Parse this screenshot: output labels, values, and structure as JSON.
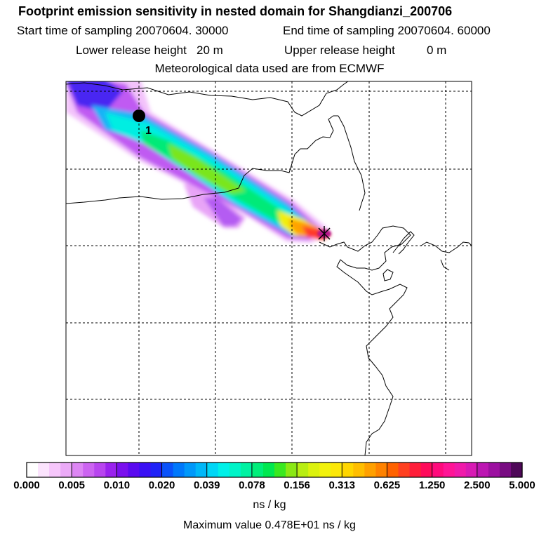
{
  "header": {
    "title": "Footprint emission sensitivity in nested domain for Shangdianzi_200706",
    "start_label": "Start time of sampling 20070604. 30000",
    "end_label": "End time of sampling 20070604. 60000",
    "lower_label": "Lower release height",
    "lower_value": "20 m",
    "upper_label": "Upper release height",
    "upper_value": "0 m",
    "met_label": "Meteorological data used are from ECMWF"
  },
  "map": {
    "station_marker_label": "1",
    "grid": "dashed"
  },
  "colorbar": {
    "tick_labels": [
      "0.000",
      "0.005",
      "0.010",
      "0.020",
      "0.039",
      "0.078",
      "0.156",
      "0.313",
      "0.625",
      "1.250",
      "2.500",
      "5.000"
    ],
    "colors": [
      "#ffffff",
      "#fbe3fd",
      "#f6c6fb",
      "#ebaaf7",
      "#dd86f4",
      "#cc64f1",
      "#b845ef",
      "#9a22ee",
      "#7a10ee",
      "#5a0af0",
      "#3a10f4",
      "#1f22f7",
      "#0a52fa",
      "#0078fb",
      "#0098fa",
      "#00b7f8",
      "#00d6f6",
      "#00f0e8",
      "#00f4c8",
      "#00f2a2",
      "#00ee7a",
      "#00e850",
      "#3ae820",
      "#8ae814",
      "#b8ee12",
      "#dcf20e",
      "#f2f20c",
      "#fce808",
      "#ffd600",
      "#ffbe00",
      "#ffa000",
      "#ff8200",
      "#ff6200",
      "#ff4020",
      "#ff1e3a",
      "#ff0a5a",
      "#ff0a7c",
      "#ff1496",
      "#f01aaa",
      "#d81ab4",
      "#bc16b2",
      "#9c10a0",
      "#780c82",
      "#4e0858"
    ],
    "units": "ns / kg"
  },
  "footer": {
    "max_value": "Maximum value  0.478E+01 ns / kg"
  }
}
